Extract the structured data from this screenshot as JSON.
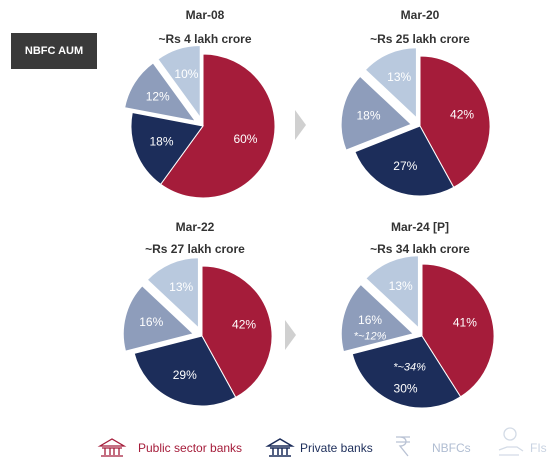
{
  "badge": "NBFC AUM",
  "chart_data": [
    {
      "type": "pie",
      "title": "Mar-08",
      "subtitle": "~Rs 4 lakh crore",
      "categories": [
        "Public sector banks",
        "Private banks",
        "NBFCs",
        "FIs"
      ],
      "values": [
        60,
        18,
        12,
        10
      ],
      "value_labels": [
        "60%",
        "18%",
        "12%",
        "10%"
      ],
      "colors": [
        "#a51c3a",
        "#1c2d5a",
        "#8e9dbb",
        "#b9c9de"
      ]
    },
    {
      "type": "pie",
      "title": "Mar-20",
      "subtitle": "~Rs 25 lakh crore",
      "categories": [
        "Public sector banks",
        "Private banks",
        "NBFCs",
        "FIs"
      ],
      "values": [
        42,
        27,
        18,
        13
      ],
      "value_labels": [
        "42%",
        "27%",
        "18%",
        "13%"
      ],
      "colors": [
        "#a51c3a",
        "#1c2d5a",
        "#8e9dbb",
        "#b9c9de"
      ]
    },
    {
      "type": "pie",
      "title": "Mar-22",
      "subtitle": "~Rs 27 lakh crore",
      "categories": [
        "Public sector banks",
        "Private banks",
        "NBFCs",
        "FIs"
      ],
      "values": [
        42,
        29,
        16,
        13
      ],
      "value_labels": [
        "42%",
        "29%",
        "16%",
        "13%"
      ],
      "colors": [
        "#a51c3a",
        "#1c2d5a",
        "#8e9dbb",
        "#b9c9de"
      ]
    },
    {
      "type": "pie",
      "title": "Mar-24 [P]",
      "subtitle": "~Rs 34 lakh crore",
      "categories": [
        "Public sector banks",
        "Private banks",
        "NBFCs",
        "FIs"
      ],
      "values": [
        41,
        30,
        16,
        13
      ],
      "value_labels": [
        "41%",
        "30%",
        "16%",
        "13%"
      ],
      "colors": [
        "#a51c3a",
        "#1c2d5a",
        "#8e9dbb",
        "#b9c9de"
      ],
      "annotations": [
        "*~34%",
        "*~12%"
      ]
    }
  ]
}
